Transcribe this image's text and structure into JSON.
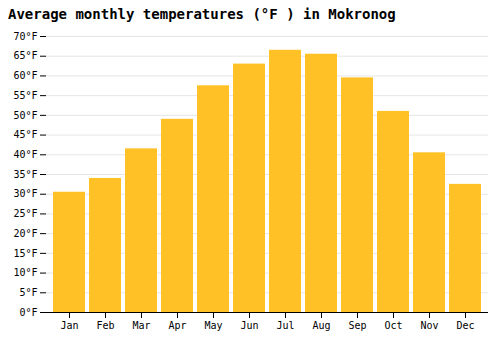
{
  "chart_data": {
    "type": "bar",
    "title": "Average monthly temperatures (°F ) in Mokronog",
    "categories": [
      "Jan",
      "Feb",
      "Mar",
      "Apr",
      "May",
      "Jun",
      "Jul",
      "Aug",
      "Sep",
      "Oct",
      "Nov",
      "Dec"
    ],
    "values": [
      30.5,
      34.0,
      41.5,
      49.0,
      57.5,
      63.0,
      66.5,
      65.5,
      59.5,
      51.0,
      40.5,
      32.5
    ],
    "color": "#FFC125",
    "ylim": [
      0,
      70
    ],
    "yticks": [
      {
        "value": 0,
        "label": "0°F"
      },
      {
        "value": 5,
        "label": "5°F"
      },
      {
        "value": 10,
        "label": "10°F"
      },
      {
        "value": 15,
        "label": "15°F"
      },
      {
        "value": 20,
        "label": "20°F"
      },
      {
        "value": 25,
        "label": "25°F"
      },
      {
        "value": 30,
        "label": "30°F"
      },
      {
        "value": 35,
        "label": "35°F"
      },
      {
        "value": 40,
        "label": "40°F"
      },
      {
        "value": 45,
        "label": "45°F"
      },
      {
        "value": 50,
        "label": "50°F"
      },
      {
        "value": 55,
        "label": "55°F"
      },
      {
        "value": 60,
        "label": "60°F"
      },
      {
        "value": 65,
        "label": "65°F"
      },
      {
        "value": 70,
        "label": "70°F"
      }
    ],
    "grid": true
  }
}
